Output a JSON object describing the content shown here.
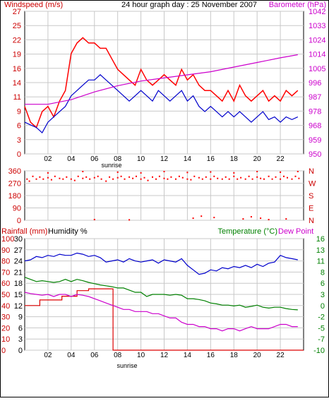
{
  "chart_data": [
    {
      "type": "line",
      "title": "24 hour graph day : 25 November 2007",
      "left_axis_title": "Windspeed (m/s)",
      "right_axis_title": "Barometer (hPa)",
      "left_ticks": [
        "0",
        "3",
        "6",
        "9",
        "11",
        "14",
        "16",
        "19",
        "22",
        "25",
        "27"
      ],
      "right_ticks": [
        "950",
        "959",
        "968",
        "978",
        "987",
        "996",
        "1005",
        "1014",
        "1024",
        "1033",
        "1042"
      ],
      "x_ticks": [
        "02",
        "04",
        "06",
        "08",
        "10",
        "12",
        "14",
        "16",
        "18",
        "20",
        "22"
      ],
      "xlim": [
        0,
        24
      ],
      "ylim_left": [
        0,
        27
      ],
      "ylim_right": [
        950,
        1042
      ],
      "colors": {
        "gust": "#ff0000",
        "average": "#0000cc",
        "barometer": "#cc00cc"
      },
      "series": [
        {
          "key": "gust",
          "x": [
            0,
            0.5,
            1,
            1.5,
            2,
            2.5,
            3,
            3.5,
            4,
            4.5,
            5,
            5.5,
            6,
            6.5,
            7,
            7.5,
            8,
            8.5,
            9,
            9.5,
            10,
            10.5,
            11,
            11.5,
            12,
            12.5,
            13,
            13.5,
            14,
            14.5,
            15,
            15.5,
            16,
            16.5,
            17,
            17.5,
            18,
            18.5,
            19,
            19.5,
            20,
            20.5,
            21,
            21.5,
            22,
            22.5,
            23,
            23.5
          ],
          "values": [
            9,
            6,
            5,
            8,
            9,
            7,
            10,
            12,
            19,
            21,
            22,
            21,
            21,
            20,
            20,
            18,
            16,
            15,
            14,
            13,
            16,
            14,
            13,
            14,
            15,
            14,
            13,
            16,
            14,
            15,
            13,
            12,
            12,
            11,
            10,
            12,
            10,
            13,
            11,
            10,
            11,
            12,
            10,
            11,
            10,
            12,
            11,
            12
          ]
        },
        {
          "key": "average",
          "x": [
            0,
            0.5,
            1,
            1.5,
            2,
            2.5,
            3,
            3.5,
            4,
            4.5,
            5,
            5.5,
            6,
            6.5,
            7,
            7.5,
            8,
            8.5,
            9,
            9.5,
            10,
            10.5,
            11,
            11.5,
            12,
            12.5,
            13,
            13.5,
            14,
            14.5,
            15,
            15.5,
            16,
            16.5,
            17,
            17.5,
            18,
            18.5,
            19,
            19.5,
            20,
            20.5,
            21,
            21.5,
            22,
            22.5,
            23,
            23.5
          ],
          "values": [
            6,
            5.5,
            5,
            4,
            6,
            7,
            8,
            9,
            11,
            12,
            13,
            14,
            14,
            15,
            14,
            13,
            12,
            11,
            10,
            11,
            12,
            11,
            10,
            12,
            11,
            10,
            11,
            12,
            10,
            11,
            9,
            8,
            9,
            8,
            7,
            8,
            7,
            8,
            7,
            6,
            7,
            8,
            6.5,
            7,
            6,
            7,
            6.5,
            7
          ]
        },
        {
          "key": "barometer",
          "x": [
            0,
            2,
            4,
            6,
            8,
            10,
            12,
            14,
            16,
            18,
            20,
            22,
            23.5
          ],
          "values": [
            982,
            982,
            985,
            990,
            994,
            997,
            999,
            1001,
            1003,
            1006,
            1009,
            1012,
            1014
          ]
        }
      ]
    },
    {
      "type": "scatter",
      "left_ticks": [
        "360",
        "270",
        "180",
        "90",
        "0"
      ],
      "right_ticks": [
        "N",
        "W",
        "S",
        "E",
        "N"
      ],
      "ylim": [
        0,
        360
      ],
      "color": "#ff0000",
      "points": [
        [
          0.2,
          300
        ],
        [
          0.4,
          285
        ],
        [
          0.7,
          320
        ],
        [
          1,
          300
        ],
        [
          1.3,
          315
        ],
        [
          1.6,
          300
        ],
        [
          2,
          310
        ],
        [
          2.3,
          295
        ],
        [
          2.6,
          320
        ],
        [
          3,
          305
        ],
        [
          3.3,
          300
        ],
        [
          3.6,
          315
        ],
        [
          4,
          300
        ],
        [
          4.3,
          290
        ],
        [
          4.6,
          320
        ],
        [
          5,
          305
        ],
        [
          5.3,
          315
        ],
        [
          5.6,
          300
        ],
        [
          6,
          310
        ],
        [
          6.3,
          320
        ],
        [
          6.6,
          300
        ],
        [
          7,
          285
        ],
        [
          7.3,
          315
        ],
        [
          7.6,
          300
        ],
        [
          8,
          310
        ],
        [
          8.3,
          320
        ],
        [
          8.6,
          300
        ],
        [
          9,
          315
        ],
        [
          9.3,
          305
        ],
        [
          9.6,
          320
        ],
        [
          10,
          300
        ],
        [
          10.3,
          310
        ],
        [
          10.6,
          290
        ],
        [
          11,
          315
        ],
        [
          11.3,
          300
        ],
        [
          11.6,
          320
        ],
        [
          12,
          305
        ],
        [
          12.3,
          300
        ],
        [
          12.6,
          315
        ],
        [
          13,
          300
        ],
        [
          13.3,
          320
        ],
        [
          13.6,
          310
        ],
        [
          14,
          300
        ],
        [
          14.3,
          295
        ],
        [
          14.6,
          320
        ],
        [
          15,
          310
        ],
        [
          15.3,
          300
        ],
        [
          15.6,
          315
        ],
        [
          16,
          300
        ],
        [
          16.3,
          320
        ],
        [
          16.6,
          305
        ],
        [
          17,
          300
        ],
        [
          17.3,
          315
        ],
        [
          17.6,
          300
        ],
        [
          18,
          320
        ],
        [
          18.3,
          300
        ],
        [
          18.6,
          310
        ],
        [
          19,
          300
        ],
        [
          19.3,
          320
        ],
        [
          19.6,
          300
        ],
        [
          20,
          315
        ],
        [
          20.3,
          305
        ],
        [
          20.6,
          300
        ],
        [
          21,
          320
        ],
        [
          21.3,
          300
        ],
        [
          21.6,
          315
        ],
        [
          22,
          300
        ],
        [
          22.3,
          320
        ],
        [
          22.6,
          310
        ],
        [
          23,
          300
        ],
        [
          23.3,
          320
        ],
        [
          23.6,
          305
        ],
        [
          2,
          345
        ],
        [
          5,
          355
        ],
        [
          8,
          350
        ],
        [
          10,
          345
        ],
        [
          12,
          355
        ],
        [
          14,
          348
        ],
        [
          16,
          352
        ],
        [
          18,
          345
        ],
        [
          20,
          355
        ],
        [
          22,
          350
        ],
        [
          23.5,
          355
        ],
        [
          14.5,
          15
        ],
        [
          15.2,
          30
        ],
        [
          16.3,
          20
        ],
        [
          18.8,
          10
        ],
        [
          19.5,
          25
        ],
        [
          20.3,
          15
        ],
        [
          21,
          5
        ],
        [
          22.5,
          10
        ],
        [
          6,
          5
        ],
        [
          9,
          3
        ]
      ]
    },
    {
      "type": "line",
      "rain_title": "Rainfall (mm)",
      "humidity_title": "Humidity %",
      "temperature_title": "Temperature (°C)",
      "dewpoint_title": "Dew Point",
      "left_outer_ticks": [
        "100",
        "90",
        "80",
        "70",
        "60",
        "50",
        "40",
        "30",
        "20",
        "10",
        "0"
      ],
      "left_inner_ticks": [
        "30",
        "27",
        "24",
        "21",
        "18",
        "15",
        "12",
        "9",
        "6",
        "3",
        "0"
      ],
      "right_ticks": [
        "16",
        "13",
        "11",
        "8",
        "6",
        "3",
        "0",
        "-2",
        "-5",
        "-7",
        "-10"
      ],
      "x_ticks": [
        "02",
        "04",
        "06",
        "08",
        "10",
        "12",
        "14",
        "16",
        "18",
        "20",
        "22"
      ],
      "sunrise_label": "sunrise",
      "xlim": [
        0,
        24
      ],
      "ylim_humidity": [
        0,
        100
      ],
      "ylim_temperature": [
        -10,
        16
      ],
      "colors": {
        "humidity": "#0000cc",
        "temperature": "#008000",
        "dewpoint": "#cc00cc",
        "rain": "#dd0000"
      },
      "series": [
        {
          "key": "humidity",
          "x": [
            0,
            0.5,
            1,
            1.5,
            2,
            2.5,
            3,
            3.5,
            4,
            4.5,
            5,
            5.5,
            6,
            6.5,
            7,
            7.5,
            8,
            8.5,
            9,
            9.5,
            10,
            10.5,
            11,
            11.5,
            12,
            12.5,
            13,
            13.5,
            14,
            14.5,
            15,
            15.5,
            16,
            16.5,
            17,
            17.5,
            18,
            18.5,
            19,
            19.5,
            20,
            20.5,
            21,
            21.5,
            22,
            22.5,
            23,
            23.5
          ],
          "values": [
            80,
            81,
            84,
            83,
            85,
            84,
            86,
            85,
            85,
            87,
            86,
            84,
            85,
            83,
            79,
            80,
            81,
            79,
            82,
            80,
            79,
            80,
            81,
            78,
            81,
            80,
            79,
            82,
            76,
            72,
            68,
            69,
            72,
            71,
            74,
            73,
            75,
            74,
            76,
            74,
            77,
            75,
            78,
            79,
            85,
            83,
            82,
            81
          ]
        },
        {
          "key": "temperature",
          "x": [
            0,
            0.5,
            1,
            1.5,
            2,
            2.5,
            3,
            3.5,
            4,
            4.5,
            5,
            5.5,
            6,
            6.5,
            7,
            7.5,
            8,
            8.5,
            9,
            9.5,
            10,
            10.5,
            11,
            11.5,
            12,
            12.5,
            13,
            13.5,
            14,
            14.5,
            15,
            15.5,
            16,
            16.5,
            17,
            17.5,
            18,
            18.5,
            19,
            19.5,
            20,
            20.5,
            21,
            21.5,
            22,
            22.5,
            23,
            23.5
          ],
          "values": [
            7,
            6.5,
            6,
            6.2,
            6,
            5.8,
            6,
            6.5,
            6,
            6.5,
            6.2,
            5.8,
            5.5,
            5.2,
            5,
            4.8,
            4.5,
            4.5,
            4,
            3.5,
            3.5,
            2.5,
            3,
            3,
            3,
            2.8,
            3,
            2.8,
            2,
            2,
            1.8,
            1.5,
            1,
            0.8,
            0.5,
            0.5,
            0.3,
            0.5,
            0,
            0.2,
            0.5,
            0,
            -0.2,
            0,
            0,
            -0.3,
            -0.5,
            -0.6
          ]
        },
        {
          "key": "dewpoint",
          "x": [
            0,
            0.5,
            1,
            1.5,
            2,
            2.5,
            3,
            3.5,
            4,
            4.5,
            5,
            5.5,
            6,
            6.5,
            7,
            7.5,
            8,
            8.5,
            9,
            9.5,
            10,
            10.5,
            11,
            11.5,
            12,
            12.5,
            13,
            13.5,
            14,
            14.5,
            15,
            15.5,
            16,
            16.5,
            17,
            17.5,
            18,
            18.5,
            19,
            19.5,
            20,
            20.5,
            21,
            21.5,
            22,
            22.5,
            23,
            23.5
          ],
          "values": [
            3.5,
            3.2,
            3,
            2.8,
            3,
            2.5,
            3,
            3,
            2.5,
            3,
            2.8,
            2.5,
            2,
            1.5,
            1,
            0.5,
            0,
            -0.5,
            -0.5,
            -1,
            -1,
            -1,
            -1.5,
            -1.5,
            -2,
            -2.5,
            -2.5,
            -3.5,
            -4,
            -4,
            -4.5,
            -4.5,
            -5,
            -5,
            -5.5,
            -5,
            -5,
            -5.5,
            -5,
            -4.5,
            -5,
            -5,
            -5,
            -4.5,
            -4,
            -4,
            -4.5,
            -4.5
          ]
        }
      ],
      "rain": {
        "x": [
          0,
          1.3,
          1.3,
          3.2,
          3.2,
          4.5,
          4.5,
          5.5,
          5.5,
          7.6,
          7.6,
          24
        ],
        "values": [
          12,
          12,
          13.5,
          13.5,
          14.5,
          14.5,
          16,
          16,
          16.5,
          16.5,
          0,
          0
        ]
      }
    }
  ]
}
